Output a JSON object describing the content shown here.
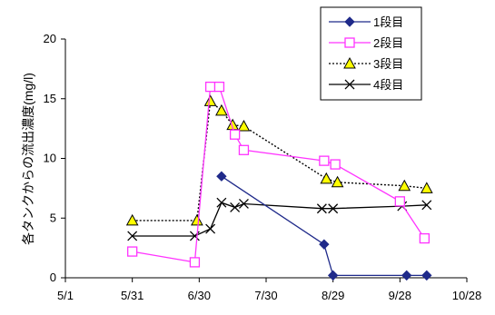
{
  "chart_data": {
    "type": "line",
    "title": "",
    "xlabel": "",
    "ylabel": "各タンクからの流出濃度(mg/l)",
    "ylim": [
      0,
      20
    ],
    "yticks": [
      0,
      5,
      10,
      15,
      20
    ],
    "xticks": [
      "5/1",
      "5/31",
      "6/30",
      "7/30",
      "8/29",
      "9/28",
      "10/28"
    ],
    "grid": false,
    "legend_position": "top-right",
    "series": [
      {
        "name": "1段目",
        "color": "#1f2a8a",
        "marker": "diamond",
        "line": "solid",
        "x": [
          "7/10",
          "8/25",
          "8/29",
          "10/1",
          "10/10"
        ],
        "values": [
          8.5,
          2.8,
          0.2,
          0.2,
          0.2
        ]
      },
      {
        "name": "2段目",
        "color": "#ff33ff",
        "marker": "square",
        "line": "solid",
        "x": [
          "5/31",
          "6/28",
          "7/5",
          "7/9",
          "7/16",
          "7/20",
          "8/25",
          "8/30",
          "9/28",
          "10/9"
        ],
        "values": [
          2.2,
          1.3,
          16.0,
          16.0,
          12.0,
          10.7,
          9.8,
          9.5,
          6.4,
          3.3
        ]
      },
      {
        "name": "3段目",
        "color": "#000000",
        "marker": "triangle",
        "line": "dotted",
        "x": [
          "5/31",
          "6/29",
          "7/5",
          "7/10",
          "7/15",
          "7/20",
          "8/26",
          "8/31",
          "9/30",
          "10/10"
        ],
        "values": [
          4.8,
          4.8,
          14.8,
          14.0,
          12.8,
          12.7,
          8.3,
          8.0,
          7.7,
          7.5
        ]
      },
      {
        "name": "4段目",
        "color": "#000000",
        "marker": "x",
        "line": "solid",
        "x": [
          "5/31",
          "6/28",
          "7/5",
          "7/10",
          "7/16",
          "7/20",
          "8/24",
          "8/29",
          "9/29",
          "10/10"
        ],
        "values": [
          3.5,
          3.5,
          4.1,
          6.3,
          5.9,
          6.2,
          5.8,
          5.8,
          6.0,
          6.1
        ]
      }
    ]
  }
}
